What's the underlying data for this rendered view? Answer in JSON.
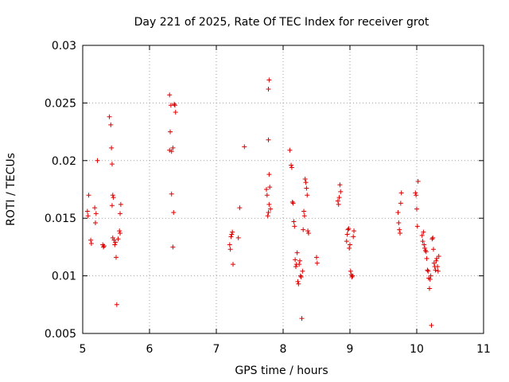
{
  "chart_data": {
    "type": "scatter",
    "title": "Day 221 of 2025, Rate Of TEC Index for receiver grot",
    "xlabel": "GPS time / hours",
    "ylabel": "ROTI / TECUs",
    "xlim": [
      5,
      11
    ],
    "ylim": [
      0.005,
      0.03
    ],
    "x_ticks": [
      5,
      6,
      7,
      8,
      9,
      10,
      11
    ],
    "x_tick_labels": [
      "5",
      "6",
      "7",
      "8",
      "9",
      "10",
      "11"
    ],
    "y_ticks": [
      0.005,
      0.01,
      0.015,
      0.02,
      0.025,
      0.03
    ],
    "y_tick_labels": [
      "0.005",
      "0.01",
      "0.015",
      "0.02",
      "0.025",
      "0.03"
    ],
    "grid": true,
    "marker": "+",
    "marker_color": "#dd0000",
    "series": [
      {
        "name": "ROTI",
        "points": [
          [
            5.07,
            0.0156
          ],
          [
            5.08,
            0.0152
          ],
          [
            5.09,
            0.017
          ],
          [
            5.12,
            0.0131
          ],
          [
            5.13,
            0.0128
          ],
          [
            5.18,
            0.0159
          ],
          [
            5.19,
            0.0146
          ],
          [
            5.2,
            0.0154
          ],
          [
            5.22,
            0.02
          ],
          [
            5.3,
            0.0127
          ],
          [
            5.31,
            0.0125
          ],
          [
            5.32,
            0.0126
          ],
          [
            5.4,
            0.0238
          ],
          [
            5.42,
            0.0231
          ],
          [
            5.43,
            0.0211
          ],
          [
            5.44,
            0.0197
          ],
          [
            5.44,
            0.0161
          ],
          [
            5.45,
            0.017
          ],
          [
            5.46,
            0.0168
          ],
          [
            5.45,
            0.0133
          ],
          [
            5.47,
            0.0131
          ],
          [
            5.48,
            0.0127
          ],
          [
            5.49,
            0.0129
          ],
          [
            5.5,
            0.0116
          ],
          [
            5.51,
            0.0075
          ],
          [
            5.53,
            0.0132
          ],
          [
            5.55,
            0.0139
          ],
          [
            5.56,
            0.0137
          ],
          [
            5.56,
            0.0154
          ],
          [
            5.57,
            0.0162
          ],
          [
            6.3,
            0.0257
          ],
          [
            6.32,
            0.0248
          ],
          [
            6.31,
            0.0225
          ],
          [
            6.3,
            0.0209
          ],
          [
            6.33,
            0.0208
          ],
          [
            6.35,
            0.0211
          ],
          [
            6.37,
            0.0249
          ],
          [
            6.38,
            0.0248
          ],
          [
            6.39,
            0.0242
          ],
          [
            6.33,
            0.0171
          ],
          [
            6.36,
            0.0155
          ],
          [
            6.35,
            0.0125
          ],
          [
            7.2,
            0.0127
          ],
          [
            7.21,
            0.0123
          ],
          [
            7.22,
            0.0134
          ],
          [
            7.23,
            0.0136
          ],
          [
            7.24,
            0.0138
          ],
          [
            7.25,
            0.011
          ],
          [
            7.33,
            0.0133
          ],
          [
            7.35,
            0.0159
          ],
          [
            7.42,
            0.0212
          ],
          [
            7.75,
            0.0175
          ],
          [
            7.76,
            0.017
          ],
          [
            7.77,
            0.0152
          ],
          [
            7.78,
            0.0155
          ],
          [
            7.79,
            0.0162
          ],
          [
            7.8,
            0.0177
          ],
          [
            7.81,
            0.0158
          ],
          [
            7.79,
            0.0188
          ],
          [
            7.78,
            0.0218
          ],
          [
            7.78,
            0.0262
          ],
          [
            7.79,
            0.027
          ],
          [
            8.1,
            0.0209
          ],
          [
            8.12,
            0.0196
          ],
          [
            8.13,
            0.0194
          ],
          [
            8.14,
            0.0164
          ],
          [
            8.15,
            0.0163
          ],
          [
            8.16,
            0.0147
          ],
          [
            8.17,
            0.0143
          ],
          [
            8.18,
            0.0114
          ],
          [
            8.19,
            0.0108
          ],
          [
            8.2,
            0.011
          ],
          [
            8.21,
            0.012
          ],
          [
            8.22,
            0.0095
          ],
          [
            8.23,
            0.0093
          ],
          [
            8.24,
            0.011
          ],
          [
            8.25,
            0.0113
          ],
          [
            8.26,
            0.01
          ],
          [
            8.27,
            0.0099
          ],
          [
            8.28,
            0.0063
          ],
          [
            8.29,
            0.0104
          ],
          [
            8.3,
            0.014
          ],
          [
            8.31,
            0.0156
          ],
          [
            8.32,
            0.0152
          ],
          [
            8.33,
            0.0184
          ],
          [
            8.34,
            0.0181
          ],
          [
            8.35,
            0.0176
          ],
          [
            8.36,
            0.017
          ],
          [
            8.37,
            0.0139
          ],
          [
            8.38,
            0.0137
          ],
          [
            8.5,
            0.0116
          ],
          [
            8.51,
            0.0111
          ],
          [
            8.82,
            0.0165
          ],
          [
            8.83,
            0.0162
          ],
          [
            8.84,
            0.0168
          ],
          [
            8.85,
            0.0179
          ],
          [
            8.86,
            0.0173
          ],
          [
            8.95,
            0.013
          ],
          [
            8.96,
            0.0136
          ],
          [
            8.97,
            0.014
          ],
          [
            8.98,
            0.0141
          ],
          [
            8.99,
            0.0124
          ],
          [
            9.0,
            0.0127
          ],
          [
            9.01,
            0.0104
          ],
          [
            9.02,
            0.0101
          ],
          [
            9.03,
            0.0099
          ],
          [
            9.04,
            0.01
          ],
          [
            9.05,
            0.0134
          ],
          [
            9.06,
            0.0139
          ],
          [
            9.72,
            0.0155
          ],
          [
            9.73,
            0.0146
          ],
          [
            9.74,
            0.014
          ],
          [
            9.75,
            0.0137
          ],
          [
            9.76,
            0.0163
          ],
          [
            9.77,
            0.0172
          ],
          [
            9.98,
            0.0172
          ],
          [
            9.99,
            0.017
          ],
          [
            10.0,
            0.0158
          ],
          [
            10.01,
            0.0143
          ],
          [
            10.02,
            0.0182
          ],
          [
            10.08,
            0.0135
          ],
          [
            10.09,
            0.013
          ],
          [
            10.1,
            0.0138
          ],
          [
            10.11,
            0.0127
          ],
          [
            10.12,
            0.0124
          ],
          [
            10.13,
            0.0122
          ],
          [
            10.14,
            0.0121
          ],
          [
            10.15,
            0.0115
          ],
          [
            10.16,
            0.0105
          ],
          [
            10.17,
            0.0104
          ],
          [
            10.18,
            0.0098
          ],
          [
            10.19,
            0.0089
          ],
          [
            10.2,
            0.0097
          ],
          [
            10.21,
            0.01
          ],
          [
            10.22,
            0.0057
          ],
          [
            10.23,
            0.0132
          ],
          [
            10.24,
            0.0133
          ],
          [
            10.25,
            0.0123
          ],
          [
            10.26,
            0.0111
          ],
          [
            10.27,
            0.0108
          ],
          [
            10.28,
            0.0105
          ],
          [
            10.29,
            0.0113
          ],
          [
            10.3,
            0.0115
          ],
          [
            10.31,
            0.0108
          ],
          [
            10.32,
            0.0104
          ],
          [
            10.33,
            0.0117
          ]
        ]
      }
    ]
  }
}
